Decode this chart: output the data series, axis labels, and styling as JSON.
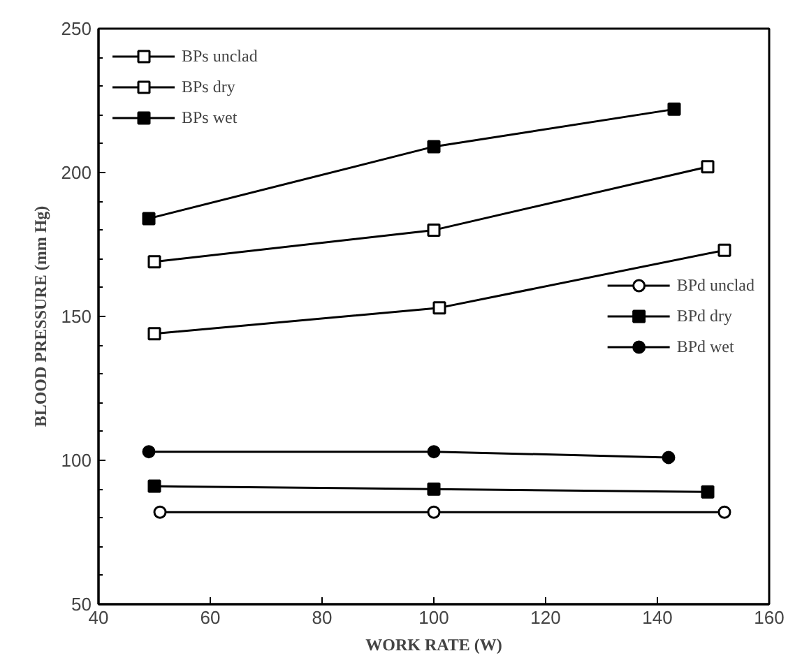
{
  "chart_data": {
    "type": "line",
    "xlabel": "WORK RATE (W)",
    "ylabel": "BLOOD PRESSURE (mm Hg)",
    "xlim": [
      40,
      160
    ],
    "xticks": [
      40,
      60,
      80,
      100,
      120,
      140,
      160
    ],
    "ylim": [
      50,
      250
    ],
    "yticks": [
      50,
      100,
      150,
      200,
      250
    ],
    "grid": false,
    "legend": "top left",
    "line_style": "solid",
    "series": [
      {
        "name": "BPs unclad",
        "color": "#000000",
        "marker": "square",
        "x": [
          50,
          101,
          152
        ],
        "values": [
          144,
          153,
          173
        ]
      },
      {
        "name": "BPs dry",
        "color": "#000000",
        "marker": "square",
        "x": [
          50,
          100,
          149
        ],
        "values": [
          169,
          180,
          202
        ]
      },
      {
        "name": "BPs wet",
        "color": "#000000",
        "marker": "square",
        "x": [
          49,
          100,
          143
        ],
        "values": [
          184,
          209,
          222
        ]
      },
      {
        "name": "BPd unclad",
        "color": "#000000",
        "marker": "circle",
        "x": [
          51,
          100,
          152
        ],
        "values": [
          82,
          82,
          82
        ]
      },
      {
        "name": "BPd dry",
        "color": "#000000",
        "marker": "square",
        "x": [
          50,
          100,
          149
        ],
        "values": [
          91,
          90,
          89
        ]
      },
      {
        "name": "BPd wet",
        "color": "#000000",
        "marker": "circle",
        "x": [
          49,
          100,
          142
        ],
        "values": [
          103,
          103,
          101
        ]
      }
    ]
  }
}
